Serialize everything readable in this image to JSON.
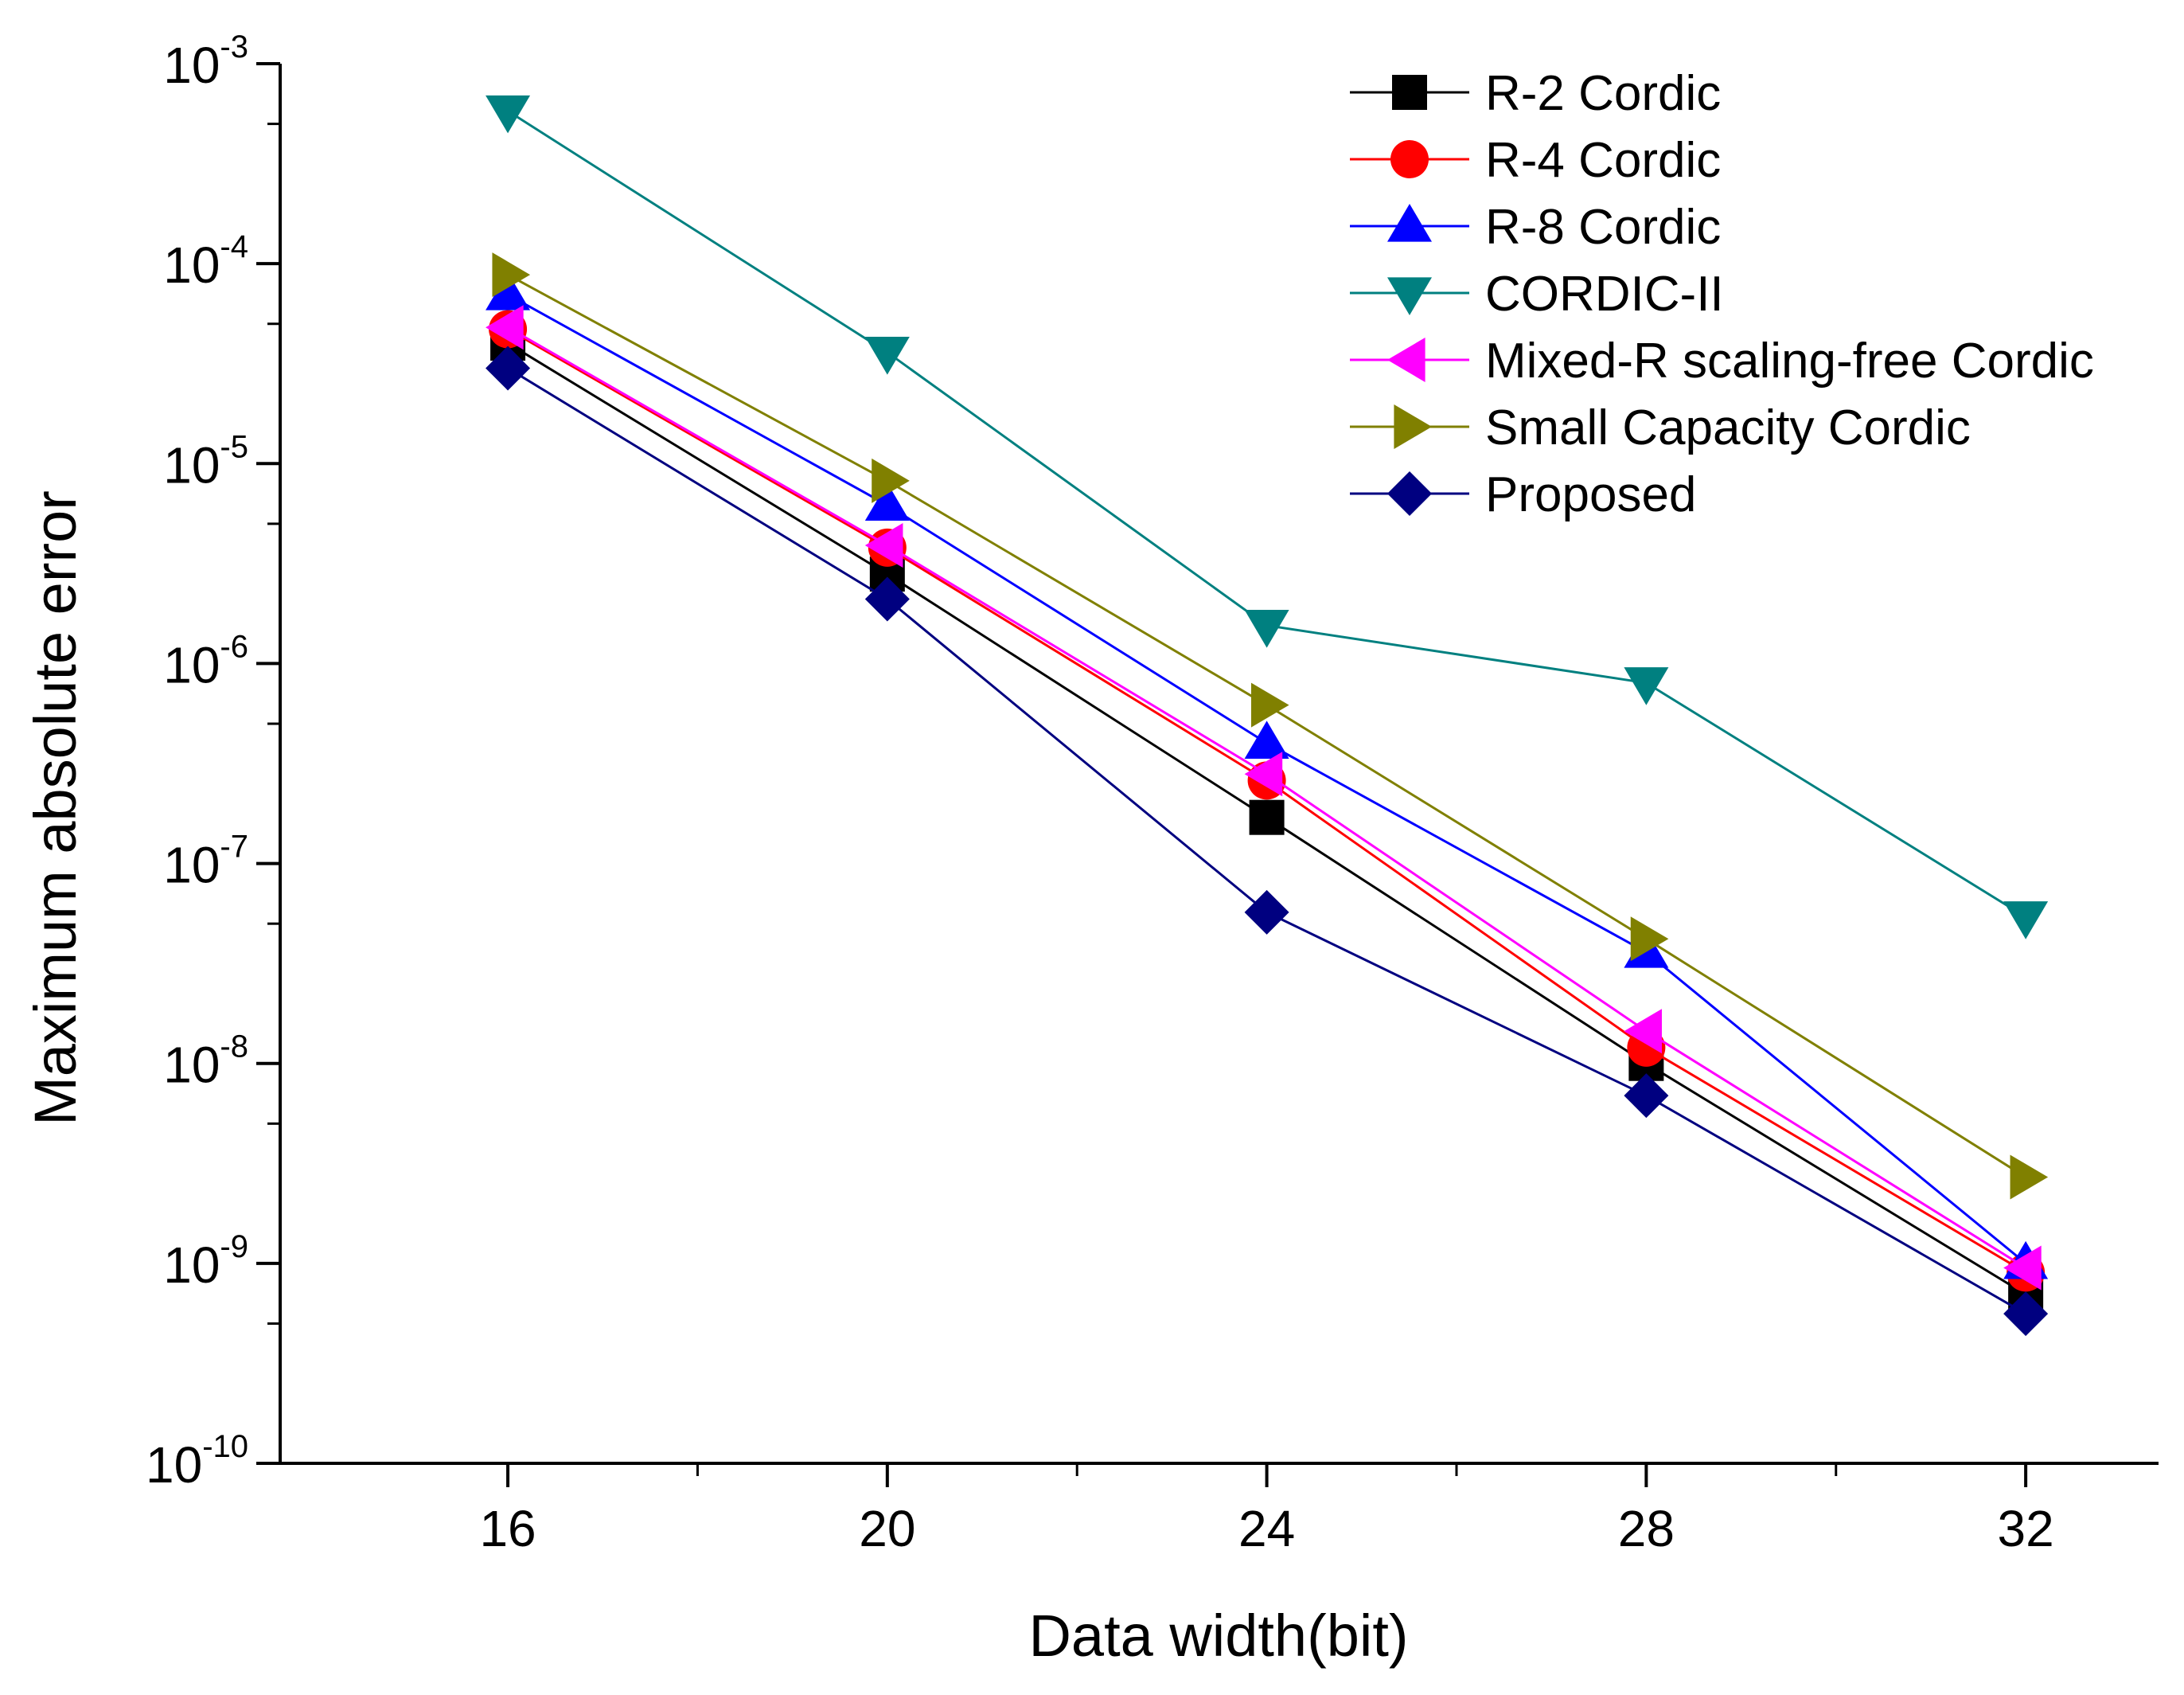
{
  "chart_data": {
    "type": "line",
    "title": "",
    "xlabel": "Data width(bit)",
    "ylabel": "Maximum absolute error",
    "yscale": "log",
    "ylim": [
      1e-10,
      0.001
    ],
    "xlim": [
      13.6,
      33.4
    ],
    "x": [
      16,
      20,
      24,
      28,
      32
    ],
    "x_ticks": [
      {
        "value": 16,
        "label": "16"
      },
      {
        "value": 20,
        "label": "20"
      },
      {
        "value": 24,
        "label": "24"
      },
      {
        "value": 28,
        "label": "28"
      },
      {
        "value": 32,
        "label": "32"
      }
    ],
    "y_ticks": [
      {
        "value": 0.001,
        "base": "10",
        "exp": "-3"
      },
      {
        "value": 0.0001,
        "base": "10",
        "exp": "-4"
      },
      {
        "value": 1e-05,
        "base": "10",
        "exp": "-5"
      },
      {
        "value": 1e-06,
        "base": "10",
        "exp": "-6"
      },
      {
        "value": 1e-07,
        "base": "10",
        "exp": "-7"
      },
      {
        "value": 1e-08,
        "base": "10",
        "exp": "-8"
      },
      {
        "value": 1e-09,
        "base": "10",
        "exp": "-9"
      },
      {
        "value": 1e-10,
        "base": "10",
        "exp": "-10"
      }
    ],
    "grid": false,
    "legend_position": "top-right",
    "series": [
      {
        "name": "R-2 Cordic",
        "color": "#000000",
        "marker": "square",
        "values": [
          4e-05,
          2.8e-06,
          1.7e-07,
          1e-08,
          7e-10
        ]
      },
      {
        "name": "R-4 Cordic",
        "color": "#ff0000",
        "marker": "circle",
        "values": [
          4.7e-05,
          3.8e-06,
          2.6e-07,
          1.2e-08,
          9e-10
        ]
      },
      {
        "name": "R-8 Cordic",
        "color": "#0000ff",
        "marker": "triangle-up",
        "values": [
          7e-05,
          6.2e-06,
          4e-07,
          3.6e-08,
          1e-09
        ]
      },
      {
        "name": "CORDIC-II",
        "color": "#008080",
        "marker": "triangle-down",
        "values": [
          0.00058,
          3.6e-05,
          1.55e-06,
          8e-07,
          5.4e-08
        ]
      },
      {
        "name": "Mixed-R scaling-free Cordic",
        "color": "#ff00ff",
        "marker": "triangle-left",
        "values": [
          4.8e-05,
          3.9e-06,
          2.8e-07,
          1.45e-08,
          9.5e-10
        ]
      },
      {
        "name": "Small Capacity Cordic",
        "color": "#808000",
        "marker": "triangle-right",
        "values": [
          8.8e-05,
          8.2e-06,
          6.2e-07,
          4.2e-08,
          2.7e-09
        ]
      },
      {
        "name": "Proposed",
        "color": "#000080",
        "marker": "diamond",
        "values": [
          3e-05,
          2.1e-06,
          5.7e-08,
          6.9e-09,
          5.6e-10
        ]
      }
    ]
  }
}
